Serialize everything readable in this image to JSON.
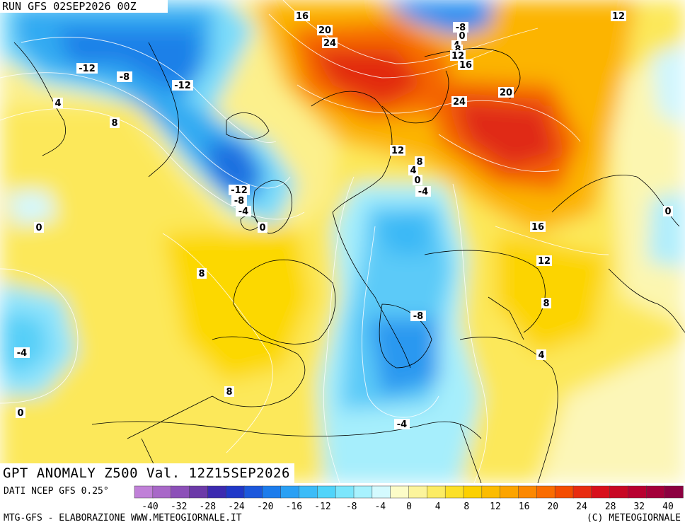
{
  "header": {
    "run_label": "RUN GFS 02SEP2026 00Z"
  },
  "map": {
    "title": "GPT ANOMALY Z500 Val. 12Z15SEP2026",
    "value_labels": [
      "-12",
      "-8",
      "-12",
      "4",
      "8",
      "-12",
      "-8",
      "-4",
      "0",
      "0",
      "8",
      "-4",
      "0",
      "8",
      "16",
      "20",
      "24",
      "-8",
      "0",
      "4",
      "8",
      "12",
      "16",
      "24",
      "20",
      "12",
      "8",
      "4",
      "0",
      "-4",
      "16",
      "12",
      "8",
      "4",
      "-8",
      "-4",
      "12",
      "0"
    ]
  },
  "colorbar": {
    "source_label": "DATI NCEP GFS 0.25°",
    "colors": [
      "#c080d8",
      "#a868c8",
      "#8c50b8",
      "#6c3aa8",
      "#3c2ab0",
      "#2038c8",
      "#1c58dc",
      "#1c7cec",
      "#2aa0f4",
      "#3cbcf8",
      "#50d4fa",
      "#7ce6fc",
      "#a8f2fe",
      "#d4fafe",
      "#fcfcc8",
      "#fcf49c",
      "#fcec64",
      "#fce028",
      "#fcd000",
      "#fcbc00",
      "#fca400",
      "#fc8800",
      "#fa6c00",
      "#f44c00",
      "#e82c10",
      "#d8101c",
      "#c80824",
      "#b80030",
      "#a4003a",
      "#8c0040"
    ],
    "tick_labels": [
      "-40",
      "-32",
      "-28",
      "-24",
      "-20",
      "-16",
      "-12",
      "-8",
      "-4",
      "0",
      "4",
      "8",
      "12",
      "16",
      "20",
      "24",
      "28",
      "32",
      "40"
    ]
  },
  "footer": {
    "left": "MTG-GFS - ELABORAZIONE WWW.METEOGIORNALE.IT",
    "right": "(C) METEOGIORNALE"
  }
}
